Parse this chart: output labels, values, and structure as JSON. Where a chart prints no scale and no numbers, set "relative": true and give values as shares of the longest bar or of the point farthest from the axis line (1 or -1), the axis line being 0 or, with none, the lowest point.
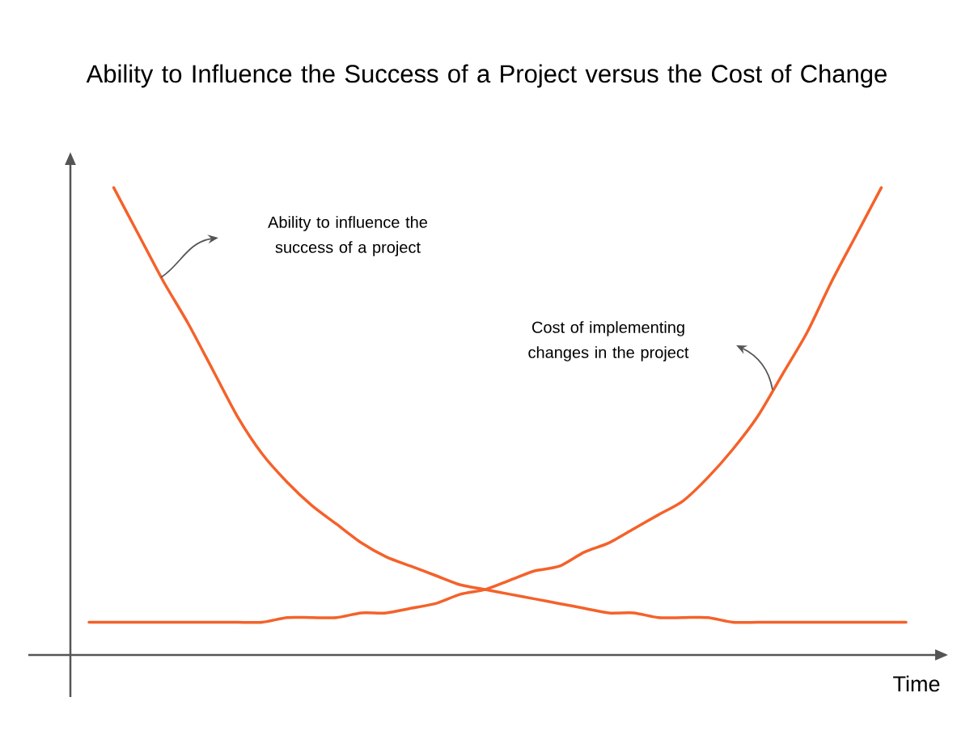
{
  "chart_data": {
    "type": "line",
    "title": "Ability to Influence the Success of a Project versus the Cost of Change",
    "xlabel": "Time",
    "relative": true,
    "categories": [
      null,
      null,
      null,
      null,
      null,
      null,
      null,
      null,
      null,
      null,
      null,
      null,
      null,
      null,
      null,
      null,
      null,
      null,
      null,
      null,
      null,
      null,
      null,
      null,
      null,
      null,
      null,
      null,
      null,
      null,
      null,
      null,
      null,
      null
    ],
    "series": [
      {
        "color": "#f4622a",
        "values": [
          null,
          1.0,
          0.9,
          0.8,
          0.71,
          0.61,
          0.51,
          0.43,
          0.37,
          0.32,
          0.28,
          0.24,
          0.21,
          0.19,
          0.17,
          0.15,
          0.14,
          0.13,
          0.12,
          0.11,
          0.1,
          0.09,
          0.09,
          0.08,
          0.08,
          0.08,
          0.07,
          0.07,
          0.07,
          0.07,
          0.07,
          0.07,
          0.07,
          0.07
        ]
      },
      {
        "color": "#f4622a",
        "values": [
          0.07,
          0.07,
          0.07,
          0.07,
          0.07,
          0.07,
          0.07,
          0.07,
          0.08,
          0.08,
          0.08,
          0.09,
          0.09,
          0.1,
          0.11,
          0.13,
          0.14,
          0.16,
          0.18,
          0.19,
          0.22,
          0.24,
          0.27,
          0.3,
          0.33,
          0.38,
          0.44,
          0.51,
          0.6,
          0.69,
          0.8,
          0.9,
          1.0,
          null
        ]
      }
    ],
    "annotations": [
      "Ability to influence the success of a project",
      "Cost of implementing changes in the project"
    ]
  }
}
